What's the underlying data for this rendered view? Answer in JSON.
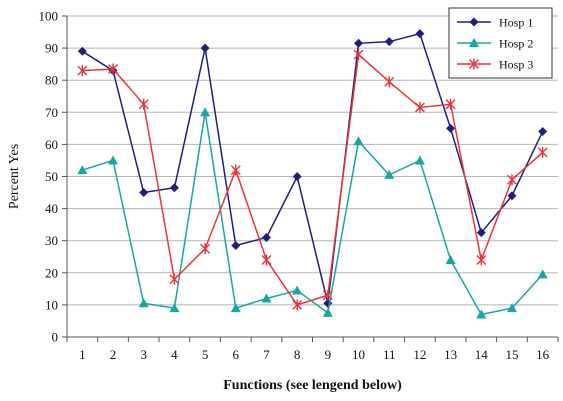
{
  "chart_data": {
    "type": "line",
    "categories": [
      "1",
      "2",
      "3",
      "4",
      "5",
      "6",
      "7",
      "8",
      "9",
      "10",
      "11",
      "12",
      "13",
      "14",
      "15",
      "16"
    ],
    "xlabel": "Functions (see lengend below)",
    "ylabel": "Percent Yes",
    "ylim": [
      0,
      100
    ],
    "yticks": [
      0,
      10,
      20,
      30,
      40,
      50,
      60,
      70,
      80,
      90,
      100
    ],
    "grid": "horizontal",
    "legend_position": "top-right",
    "series": [
      {
        "name": "Hosp 1",
        "color": "#1f1f7a",
        "marker": "diamond",
        "values": [
          89,
          83,
          45,
          46.5,
          90,
          28.5,
          31,
          50,
          10.5,
          91.5,
          92,
          94.5,
          65,
          32.5,
          44,
          64
        ]
      },
      {
        "name": "Hosp 2",
        "color": "#1aa5a5",
        "marker": "triangle",
        "values": [
          52,
          55,
          10.5,
          9,
          70,
          9,
          12,
          14.5,
          7.5,
          61,
          50.5,
          55,
          24,
          7,
          9,
          19.5
        ]
      },
      {
        "name": "Hosp 3",
        "color": "#e8343c",
        "marker": "star",
        "values": [
          83,
          83.5,
          72.5,
          18,
          27.5,
          52,
          24,
          10,
          13,
          88,
          79.5,
          71.5,
          72.5,
          24,
          49,
          57.5
        ]
      }
    ]
  }
}
